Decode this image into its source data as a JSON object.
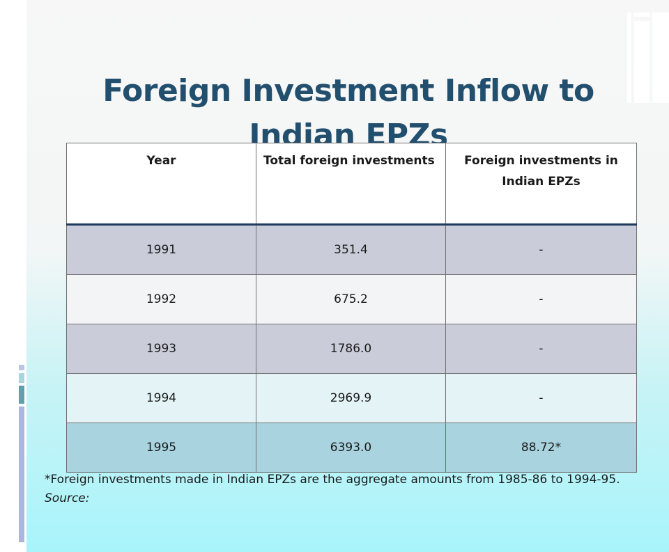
{
  "slide": {
    "title": "Foreign Investment Inflow to Indian EPZs"
  },
  "table": {
    "headers": [
      "Year",
      "Total foreign investments",
      "Foreign investments in Indian EPZs"
    ],
    "rows": [
      [
        "1991",
        "351.4",
        "-"
      ],
      [
        "1992",
        "675.2",
        "-"
      ],
      [
        "1993",
        "1786.0",
        "-"
      ],
      [
        "1994",
        "2969.9",
        "-"
      ],
      [
        "1995",
        "6393.0",
        "88.72*"
      ]
    ]
  },
  "note": {
    "text": "*Foreign investments made in Indian EPZs are the aggregate amounts from 1985-86 to 1994-95.",
    "source": "Source:"
  },
  "colors": {
    "title": "#234f6e",
    "row_odd": "#cacdd9",
    "row_even": "#f2f4f6",
    "row_last": "#a9d3df",
    "header_rule": "#1f3a5c"
  }
}
